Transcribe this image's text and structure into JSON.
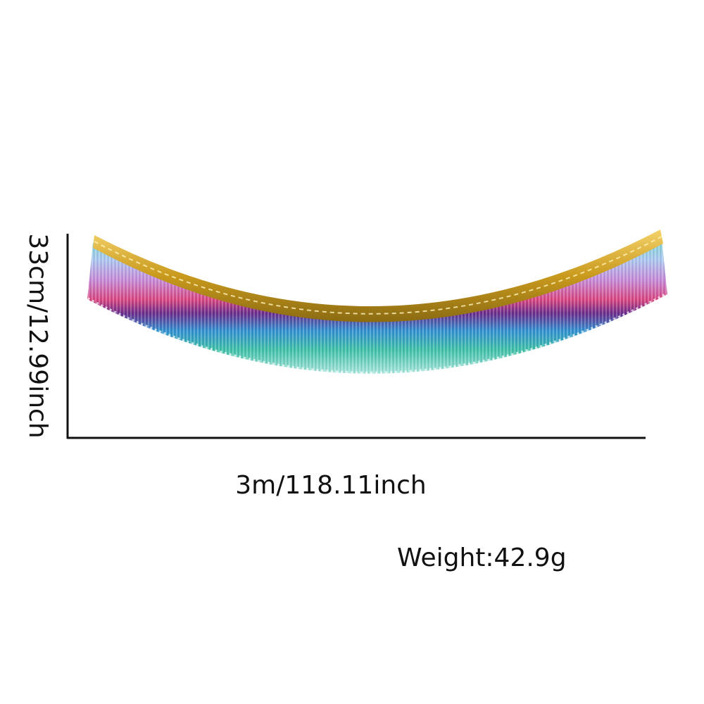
{
  "product": {
    "name_icon": "rainbow-fringe-garland",
    "header_color": "#d9a520",
    "fringe_colors": [
      "#2fb8a8",
      "#7ad0e0",
      "#b9a3e6",
      "#d04ea0",
      "#e0593a",
      "#7a2a8c",
      "#2a9ad4",
      "#40c0a0"
    ]
  },
  "dimensions": {
    "height": "33cm/12.99inch",
    "width": "3m/118.11inch",
    "weight": "Weight:42.9g"
  },
  "axis_color": "#111111"
}
